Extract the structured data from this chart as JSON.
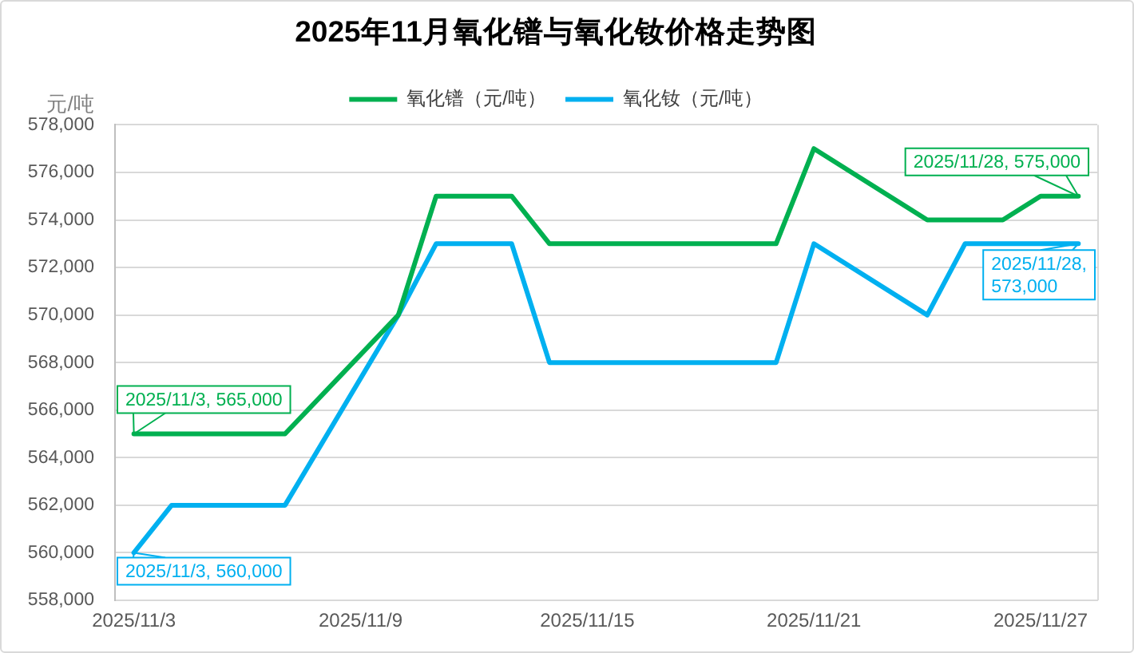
{
  "chart_data": {
    "type": "line",
    "title": "2025年11月氧化镨与氧化钕价格走势图",
    "ylabel": "元/吨",
    "x": [
      "2025-11-03",
      "2025-11-04",
      "2025-11-05",
      "2025-11-06",
      "2025-11-07",
      "2025-11-10",
      "2025-11-11",
      "2025-11-12",
      "2025-11-13",
      "2025-11-14",
      "2025-11-17",
      "2025-11-18",
      "2025-11-19",
      "2025-11-20",
      "2025-11-21",
      "2025-11-24",
      "2025-11-25",
      "2025-11-26",
      "2025-11-27",
      "2025-11-28"
    ],
    "xlim": [
      "2025-11-02T12:00",
      "2025-11-28T12:00"
    ],
    "xticks": [
      {
        "value": "2025-11-03",
        "label": "2025/11/3"
      },
      {
        "value": "2025-11-09",
        "label": "2025/11/9"
      },
      {
        "value": "2025-11-15",
        "label": "2025/11/15"
      },
      {
        "value": "2025-11-21",
        "label": "2025/11/21"
      },
      {
        "value": "2025-11-27",
        "label": "2025/11/27"
      }
    ],
    "ylim": [
      558000,
      578000
    ],
    "yticks": [
      {
        "value": 558000,
        "label": "558,000"
      },
      {
        "value": 560000,
        "label": "560,000"
      },
      {
        "value": 562000,
        "label": "562,000"
      },
      {
        "value": 564000,
        "label": "564,000"
      },
      {
        "value": 566000,
        "label": "566,000"
      },
      {
        "value": 568000,
        "label": "568,000"
      },
      {
        "value": 570000,
        "label": "570,000"
      },
      {
        "value": 572000,
        "label": "572,000"
      },
      {
        "value": 574000,
        "label": "574,000"
      },
      {
        "value": 576000,
        "label": "576,000"
      },
      {
        "value": 578000,
        "label": "578,000"
      }
    ],
    "series": [
      {
        "name": "氧化镨（元/吨）",
        "color": "#00b050",
        "values": [
          565000,
          565000,
          565000,
          565000,
          565000,
          570000,
          575000,
          575000,
          575000,
          573000,
          573000,
          573000,
          573000,
          573000,
          577000,
          574000,
          574000,
          574000,
          575000,
          575000
        ],
        "value_labels": [
          "2025/11/3, 565,000",
          null,
          null,
          null,
          null,
          null,
          null,
          null,
          null,
          null,
          null,
          null,
          null,
          null,
          null,
          null,
          null,
          null,
          null,
          "2025/11/28, 575,000"
        ]
      },
      {
        "name": "氧化钕（元/吨）",
        "color": "#00b0f0",
        "values": [
          560000,
          562000,
          562000,
          562000,
          562000,
          570000,
          573000,
          573000,
          573000,
          568000,
          568000,
          568000,
          568000,
          568000,
          573000,
          570000,
          573000,
          573000,
          573000,
          573000
        ],
        "value_labels": [
          "2025/11/3, 560,000",
          null,
          null,
          null,
          null,
          null,
          null,
          null,
          null,
          null,
          null,
          null,
          null,
          null,
          null,
          null,
          null,
          null,
          null,
          "2025/11/28, 573,000"
        ]
      }
    ],
    "grid": "y",
    "legend": "top",
    "marker": "none",
    "line_style": "solid"
  }
}
